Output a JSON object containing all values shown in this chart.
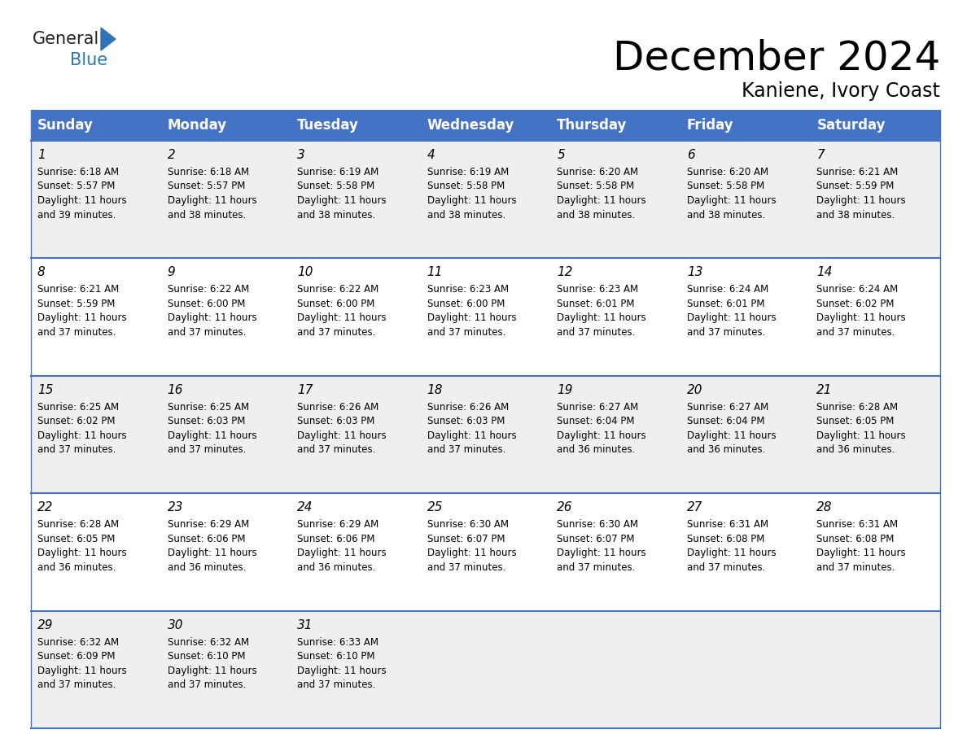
{
  "title": "December 2024",
  "subtitle": "Kaniene, Ivory Coast",
  "header_bg": "#4472C4",
  "header_text_color": "#FFFFFF",
  "header_font_size": 12,
  "days_of_week": [
    "Sunday",
    "Monday",
    "Tuesday",
    "Wednesday",
    "Thursday",
    "Friday",
    "Saturday"
  ],
  "weeks": [
    [
      {
        "day": "1",
        "sunrise": "6:18 AM",
        "sunset": "5:57 PM",
        "daylight": "11 hours",
        "daylight2": "and 39 minutes."
      },
      {
        "day": "2",
        "sunrise": "6:18 AM",
        "sunset": "5:57 PM",
        "daylight": "11 hours",
        "daylight2": "and 38 minutes."
      },
      {
        "day": "3",
        "sunrise": "6:19 AM",
        "sunset": "5:58 PM",
        "daylight": "11 hours",
        "daylight2": "and 38 minutes."
      },
      {
        "day": "4",
        "sunrise": "6:19 AM",
        "sunset": "5:58 PM",
        "daylight": "11 hours",
        "daylight2": "and 38 minutes."
      },
      {
        "day": "5",
        "sunrise": "6:20 AM",
        "sunset": "5:58 PM",
        "daylight": "11 hours",
        "daylight2": "and 38 minutes."
      },
      {
        "day": "6",
        "sunrise": "6:20 AM",
        "sunset": "5:58 PM",
        "daylight": "11 hours",
        "daylight2": "and 38 minutes."
      },
      {
        "day": "7",
        "sunrise": "6:21 AM",
        "sunset": "5:59 PM",
        "daylight": "11 hours",
        "daylight2": "and 38 minutes."
      }
    ],
    [
      {
        "day": "8",
        "sunrise": "6:21 AM",
        "sunset": "5:59 PM",
        "daylight": "11 hours",
        "daylight2": "and 37 minutes."
      },
      {
        "day": "9",
        "sunrise": "6:22 AM",
        "sunset": "6:00 PM",
        "daylight": "11 hours",
        "daylight2": "and 37 minutes."
      },
      {
        "day": "10",
        "sunrise": "6:22 AM",
        "sunset": "6:00 PM",
        "daylight": "11 hours",
        "daylight2": "and 37 minutes."
      },
      {
        "day": "11",
        "sunrise": "6:23 AM",
        "sunset": "6:00 PM",
        "daylight": "11 hours",
        "daylight2": "and 37 minutes."
      },
      {
        "day": "12",
        "sunrise": "6:23 AM",
        "sunset": "6:01 PM",
        "daylight": "11 hours",
        "daylight2": "and 37 minutes."
      },
      {
        "day": "13",
        "sunrise": "6:24 AM",
        "sunset": "6:01 PM",
        "daylight": "11 hours",
        "daylight2": "and 37 minutes."
      },
      {
        "day": "14",
        "sunrise": "6:24 AM",
        "sunset": "6:02 PM",
        "daylight": "11 hours",
        "daylight2": "and 37 minutes."
      }
    ],
    [
      {
        "day": "15",
        "sunrise": "6:25 AM",
        "sunset": "6:02 PM",
        "daylight": "11 hours",
        "daylight2": "and 37 minutes."
      },
      {
        "day": "16",
        "sunrise": "6:25 AM",
        "sunset": "6:03 PM",
        "daylight": "11 hours",
        "daylight2": "and 37 minutes."
      },
      {
        "day": "17",
        "sunrise": "6:26 AM",
        "sunset": "6:03 PM",
        "daylight": "11 hours",
        "daylight2": "and 37 minutes."
      },
      {
        "day": "18",
        "sunrise": "6:26 AM",
        "sunset": "6:03 PM",
        "daylight": "11 hours",
        "daylight2": "and 37 minutes."
      },
      {
        "day": "19",
        "sunrise": "6:27 AM",
        "sunset": "6:04 PM",
        "daylight": "11 hours",
        "daylight2": "and 36 minutes."
      },
      {
        "day": "20",
        "sunrise": "6:27 AM",
        "sunset": "6:04 PM",
        "daylight": "11 hours",
        "daylight2": "and 36 minutes."
      },
      {
        "day": "21",
        "sunrise": "6:28 AM",
        "sunset": "6:05 PM",
        "daylight": "11 hours",
        "daylight2": "and 36 minutes."
      }
    ],
    [
      {
        "day": "22",
        "sunrise": "6:28 AM",
        "sunset": "6:05 PM",
        "daylight": "11 hours",
        "daylight2": "and 36 minutes."
      },
      {
        "day": "23",
        "sunrise": "6:29 AM",
        "sunset": "6:06 PM",
        "daylight": "11 hours",
        "daylight2": "and 36 minutes."
      },
      {
        "day": "24",
        "sunrise": "6:29 AM",
        "sunset": "6:06 PM",
        "daylight": "11 hours",
        "daylight2": "and 36 minutes."
      },
      {
        "day": "25",
        "sunrise": "6:30 AM",
        "sunset": "6:07 PM",
        "daylight": "11 hours",
        "daylight2": "and 37 minutes."
      },
      {
        "day": "26",
        "sunrise": "6:30 AM",
        "sunset": "6:07 PM",
        "daylight": "11 hours",
        "daylight2": "and 37 minutes."
      },
      {
        "day": "27",
        "sunrise": "6:31 AM",
        "sunset": "6:08 PM",
        "daylight": "11 hours",
        "daylight2": "and 37 minutes."
      },
      {
        "day": "28",
        "sunrise": "6:31 AM",
        "sunset": "6:08 PM",
        "daylight": "11 hours",
        "daylight2": "and 37 minutes."
      }
    ],
    [
      {
        "day": "29",
        "sunrise": "6:32 AM",
        "sunset": "6:09 PM",
        "daylight": "11 hours",
        "daylight2": "and 37 minutes."
      },
      {
        "day": "30",
        "sunrise": "6:32 AM",
        "sunset": "6:10 PM",
        "daylight": "11 hours",
        "daylight2": "and 37 minutes."
      },
      {
        "day": "31",
        "sunrise": "6:33 AM",
        "sunset": "6:10 PM",
        "daylight": "11 hours",
        "daylight2": "and 37 minutes."
      },
      null,
      null,
      null,
      null
    ]
  ],
  "cell_bg_light": "#EFEFEF",
  "cell_bg_white": "#FFFFFF",
  "border_color": "#4472C4",
  "day_number_font_size": 11,
  "cell_text_font_size": 8.5,
  "title_font_size": 36,
  "subtitle_font_size": 17,
  "logo_general_color": "#222222",
  "logo_blue_color": "#2E75B6"
}
